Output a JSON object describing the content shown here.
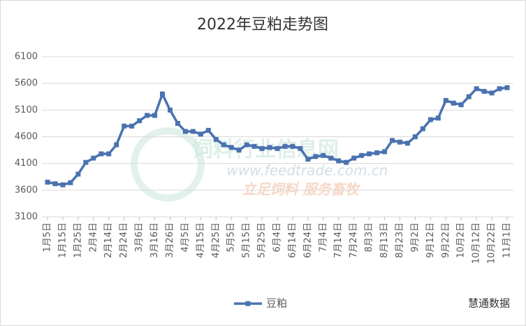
{
  "chart_data": {
    "type": "line",
    "title": "2022年豆粕走势图",
    "categories": [
      "1月5日",
      null,
      "1月15日",
      null,
      "1月25日",
      null,
      "2月4日",
      null,
      "2月14日",
      null,
      "2月24日",
      null,
      "3月6日",
      null,
      "3月16日",
      null,
      "3月26日",
      null,
      "4月5日",
      null,
      "4月15日",
      null,
      "4月25日",
      null,
      "5月5日",
      null,
      "5月15日",
      null,
      "5月25日",
      null,
      "6月4日",
      null,
      "6月14日",
      null,
      "6月24日",
      null,
      "7月4日",
      null,
      "7月14日",
      null,
      "7月24日",
      null,
      "8月3日",
      null,
      "8月13日",
      null,
      "8月23日",
      null,
      "9月2日",
      null,
      "9月12日",
      null,
      "9月22日",
      null,
      "10月2日",
      null,
      "10月12日",
      null,
      "10月22日",
      null,
      "11月1日"
    ],
    "series": [
      {
        "name": "豆粕",
        "color": "#4a72b0",
        "values": [
          3750,
          3720,
          3700,
          3740,
          3900,
          4120,
          4200,
          4280,
          4280,
          4450,
          4800,
          4800,
          4900,
          5000,
          5000,
          5400,
          5100,
          4850,
          4700,
          4700,
          4650,
          4720,
          4550,
          4450,
          4400,
          4350,
          4450,
          4420,
          4380,
          4400,
          4380,
          4420,
          4420,
          4380,
          4180,
          4230,
          4250,
          4200,
          4150,
          4120,
          4200,
          4250,
          4280,
          4300,
          4320,
          4530,
          4500,
          4480,
          4600,
          4750,
          4920,
          4950,
          5280,
          5230,
          5200,
          5350,
          5500,
          5450,
          5420,
          5500,
          5520
        ]
      }
    ],
    "ylim": [
      3100,
      6100
    ],
    "yticks": [
      3100,
      3600,
      4100,
      4600,
      5100,
      5600,
      6100
    ],
    "grid": true,
    "legend": "bottom",
    "watermark": [
      "饲料行业信息网",
      "www.feedtrade.com.cn",
      "立足饲料 服务畜牧"
    ],
    "source": "慧通数据"
  }
}
